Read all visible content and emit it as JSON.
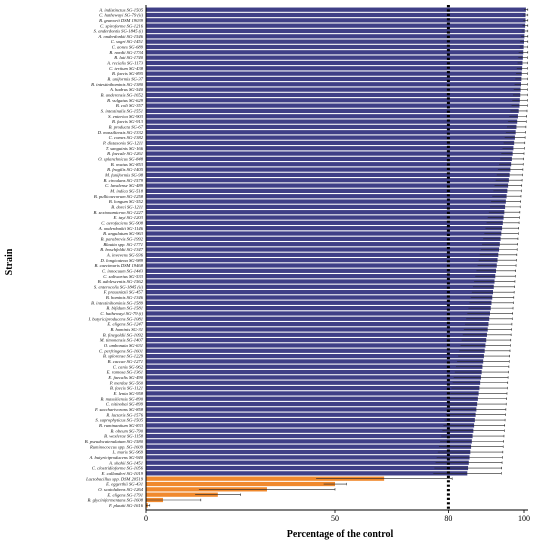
{
  "chart_data": {
    "type": "bar",
    "orientation": "horizontal",
    "xlabel": "Percentage of the control",
    "ylabel": "Strain",
    "xlim": [
      0,
      105
    ],
    "xticks": [
      0,
      50,
      80,
      100
    ],
    "reference_line": 80,
    "grid": false,
    "colors": {
      "main": "#3f3f86",
      "highlight": "#f0892d",
      "error": "#222222",
      "reference": "#000000"
    },
    "bars": [
      {
        "label": "A. indistinctus SG-1505",
        "value": 100.5,
        "err": 0.5
      },
      {
        "label": "C. hathewayi SG-79 (ii)",
        "value": 100.4,
        "err": 0.6
      },
      {
        "label": "B. gnavorii DSM 19039",
        "value": 100.4,
        "err": 0.6
      },
      {
        "label": "C. spiroforme SG-1216",
        "value": 100.3,
        "err": 0.7
      },
      {
        "label": "S. anderdontis SG-1845 (i)",
        "value": 100.2,
        "err": 0.8
      },
      {
        "label": "A. onderdonkii SG-1546",
        "value": 100.1,
        "err": 0.9
      },
      {
        "label": "C. sogri SG-1451",
        "value": 100.0,
        "err": 1.0
      },
      {
        "label": "C. aones SG-689",
        "value": 99.9,
        "err": 1.0
      },
      {
        "label": "B. nordii SG-1734",
        "value": 99.8,
        "err": 1.2
      },
      {
        "label": "B. luti SG-1740",
        "value": 99.7,
        "err": 1.2
      },
      {
        "label": "A. recialis SG-1173",
        "value": 99.6,
        "err": 1.3
      },
      {
        "label": "C. tertium SG-438",
        "value": 99.5,
        "err": 1.4
      },
      {
        "label": "B. faecis SG-895",
        "value": 99.4,
        "err": 1.5
      },
      {
        "label": "B. uniformis SG-37",
        "value": 99.3,
        "err": 1.6
      },
      {
        "label": "B. intestinihominis SG-1380",
        "value": 99.2,
        "err": 1.7
      },
      {
        "label": "A. hadrus SG-540",
        "value": 99.1,
        "err": 1.8
      },
      {
        "label": "B. anderensis SG-1652",
        "value": 99.0,
        "err": 1.9
      },
      {
        "label": "B. vulgatus SG-629",
        "value": 98.9,
        "err": 2.0
      },
      {
        "label": "B. coli SG-357",
        "value": 98.8,
        "err": 2.1
      },
      {
        "label": "S. intestinalis SG-1551",
        "value": 98.6,
        "err": 2.2
      },
      {
        "label": "S. enterica SG-903",
        "value": 98.4,
        "err": 2.3
      },
      {
        "label": "B. faecis SG-913",
        "value": 98.2,
        "err": 2.4
      },
      {
        "label": "B. producta SG-67",
        "value": 98.0,
        "err": 2.5
      },
      {
        "label": "D. massiliensis SG-1332",
        "value": 97.8,
        "err": 2.6
      },
      {
        "label": "C. comes SG-1382",
        "value": 97.6,
        "err": 2.7
      },
      {
        "label": "P. distasonis SG-1211",
        "value": 97.4,
        "err": 2.8
      },
      {
        "label": "T. sanguinis SG-166",
        "value": 97.2,
        "err": 2.9
      },
      {
        "label": "B. faecale SG-1261",
        "value": 97.0,
        "err": 3.0
      },
      {
        "label": "O. splanchnicus SG-848",
        "value": 96.8,
        "err": 3.1
      },
      {
        "label": "B. ovatus SG-853",
        "value": 96.6,
        "err": 3.2
      },
      {
        "label": "B. fragilis SG-1405",
        "value": 96.4,
        "err": 3.3
      },
      {
        "label": "M. funiformis SG-98",
        "value": 96.2,
        "err": 3.4
      },
      {
        "label": "B. circulans SG-1579",
        "value": 96.0,
        "err": 3.5
      },
      {
        "label": "C. lavalense SG-489",
        "value": 95.8,
        "err": 3.6
      },
      {
        "label": "M. indica SG-518",
        "value": 95.6,
        "err": 3.7
      },
      {
        "label": "B. pullicaecorum SG-1258",
        "value": 95.4,
        "err": 3.8
      },
      {
        "label": "B. longum SG-552",
        "value": 95.2,
        "err": 3.9
      },
      {
        "label": "B. dorei SG-1211",
        "value": 95.0,
        "err": 4.0
      },
      {
        "label": "B. sexionamicron SG-1227",
        "value": 94.8,
        "err": 4.1
      },
      {
        "label": "E. tayi SG-1203",
        "value": 94.6,
        "err": 4.2
      },
      {
        "label": "C. aerofaciens SG-908",
        "value": 94.4,
        "err": 4.3
      },
      {
        "label": "A. onderdonkii SG-1146",
        "value": 94.2,
        "err": 4.4
      },
      {
        "label": "B. angulatum SG-963",
        "value": 94.0,
        "err": 4.5
      },
      {
        "label": "B. parabrevis SG-1992",
        "value": 93.8,
        "err": 4.6
      },
      {
        "label": "Blautia spp. SG-1771",
        "value": 93.6,
        "err": 4.7
      },
      {
        "label": "B. boschfeldii SG-1347",
        "value": 93.4,
        "err": 4.8
      },
      {
        "label": "A. invevens SG-936",
        "value": 93.2,
        "err": 4.9
      },
      {
        "label": "D. longicatena SG-989",
        "value": 93.0,
        "err": 5.0
      },
      {
        "label": "B. caecimuris DSM 19468",
        "value": 92.8,
        "err": 5.1
      },
      {
        "label": "C. innocuum SG-1443",
        "value": 92.6,
        "err": 5.2
      },
      {
        "label": "C. saliwarius SG-533",
        "value": 92.4,
        "err": 5.3
      },
      {
        "label": "B. adolescentis SG-1562",
        "value": 92.2,
        "err": 5.4
      },
      {
        "label": "S. enterocolis SG-1845 (ii)",
        "value": 92.0,
        "err": 5.5
      },
      {
        "label": "F. prausnitzii SG-457",
        "value": 91.8,
        "err": 5.6
      },
      {
        "label": "B. hominis SG-1346",
        "value": 91.6,
        "err": 5.7
      },
      {
        "label": "B. intestinihominis SG-1589",
        "value": 91.4,
        "err": 5.8
      },
      {
        "label": "B. bifidum SG-1581",
        "value": 91.2,
        "err": 5.9
      },
      {
        "label": "C. hathewayi SG-79 (i)",
        "value": 91.0,
        "err": 6.0
      },
      {
        "label": "I. butyriciproducens SG-1081",
        "value": 90.8,
        "err": 6.1
      },
      {
        "label": "E. eligens SG-1247",
        "value": 90.6,
        "err": 6.2
      },
      {
        "label": "B. hominis SG-31",
        "value": 90.4,
        "err": 6.3
      },
      {
        "label": "B. finegoldii SG-1092",
        "value": 90.2,
        "err": 6.4
      },
      {
        "label": "M. timonensis SG-1407",
        "value": 90.0,
        "err": 6.5
      },
      {
        "label": "O. umbonata SG-631",
        "value": 89.8,
        "err": 6.6
      },
      {
        "label": "C. perfringens SG-1601",
        "value": 89.6,
        "err": 6.7
      },
      {
        "label": "B. splorense SG-1229",
        "value": 89.4,
        "err": 6.8
      },
      {
        "label": "B. caccae SG-1271",
        "value": 89.2,
        "err": 6.9
      },
      {
        "label": "C. canis SG-962",
        "value": 89.0,
        "err": 7.0
      },
      {
        "label": "E. ramosa SG-1361",
        "value": 88.8,
        "err": 7.1
      },
      {
        "label": "E. faecalis SG-490",
        "value": 88.6,
        "err": 7.2
      },
      {
        "label": "P. merdae SG-560",
        "value": 88.4,
        "err": 7.3
      },
      {
        "label": "B. faecis SG-1121",
        "value": 88.2,
        "err": 7.4
      },
      {
        "label": "E. lenta SG-958",
        "value": 88.0,
        "err": 7.5
      },
      {
        "label": "B. massiliensis SG-890",
        "value": 87.8,
        "err": 7.6
      },
      {
        "label": "C. nitinobai SG-899",
        "value": 87.6,
        "err": 7.7
      },
      {
        "label": "F. saccharivorans SG-858",
        "value": 87.4,
        "err": 7.8
      },
      {
        "label": "R. lactaris SG-1576",
        "value": 87.2,
        "err": 7.9
      },
      {
        "label": "S. saprophyticus SG-1505",
        "value": 87.0,
        "err": 8.0
      },
      {
        "label": "B. ruminantium SG-833",
        "value": 86.8,
        "err": 8.1
      },
      {
        "label": "B. obeum SG-790",
        "value": 86.6,
        "err": 8.2
      },
      {
        "label": "B. wexlerae SG-1158",
        "value": 86.4,
        "err": 8.3
      },
      {
        "label": "B. pseudocatenulatum SG-1580",
        "value": 86.2,
        "err": 8.4
      },
      {
        "label": "Ruminococcus spp. SG-1609",
        "value": 86.0,
        "err": 8.5
      },
      {
        "label": "L. muris SG-969",
        "value": 85.8,
        "err": 8.6
      },
      {
        "label": "A. butyriciproducens SG-940",
        "value": 85.6,
        "err": 8.7
      },
      {
        "label": "A. shahii SG-1451",
        "value": 85.4,
        "err": 8.8
      },
      {
        "label": "C. clostridioforme SG-1056",
        "value": 85.2,
        "err": 8.9
      },
      {
        "label": "E. callanderi SG-1019",
        "value": 85.0,
        "err": 9.0
      },
      {
        "label": "Lactobacillus spp. DSM 20519",
        "value": 63.0,
        "err": 18.0,
        "highlight": true
      },
      {
        "label": "E. eggerthii SG-431",
        "value": 50.0,
        "err": 3.0,
        "highlight": true
      },
      {
        "label": "O. scatolubens SG-1264",
        "value": 32.0,
        "err": 18.0,
        "highlight": true
      },
      {
        "label": "E. eligens SG-1791",
        "value": 19.0,
        "err": 6.0,
        "highlight": true
      },
      {
        "label": "B. glycinifermentans SG-1608",
        "value": 4.5,
        "err": 10.0,
        "highlight": true
      },
      {
        "label": "F. plautii SG-1616",
        "value": 0.5,
        "err": 0.5,
        "highlight": true
      }
    ]
  }
}
